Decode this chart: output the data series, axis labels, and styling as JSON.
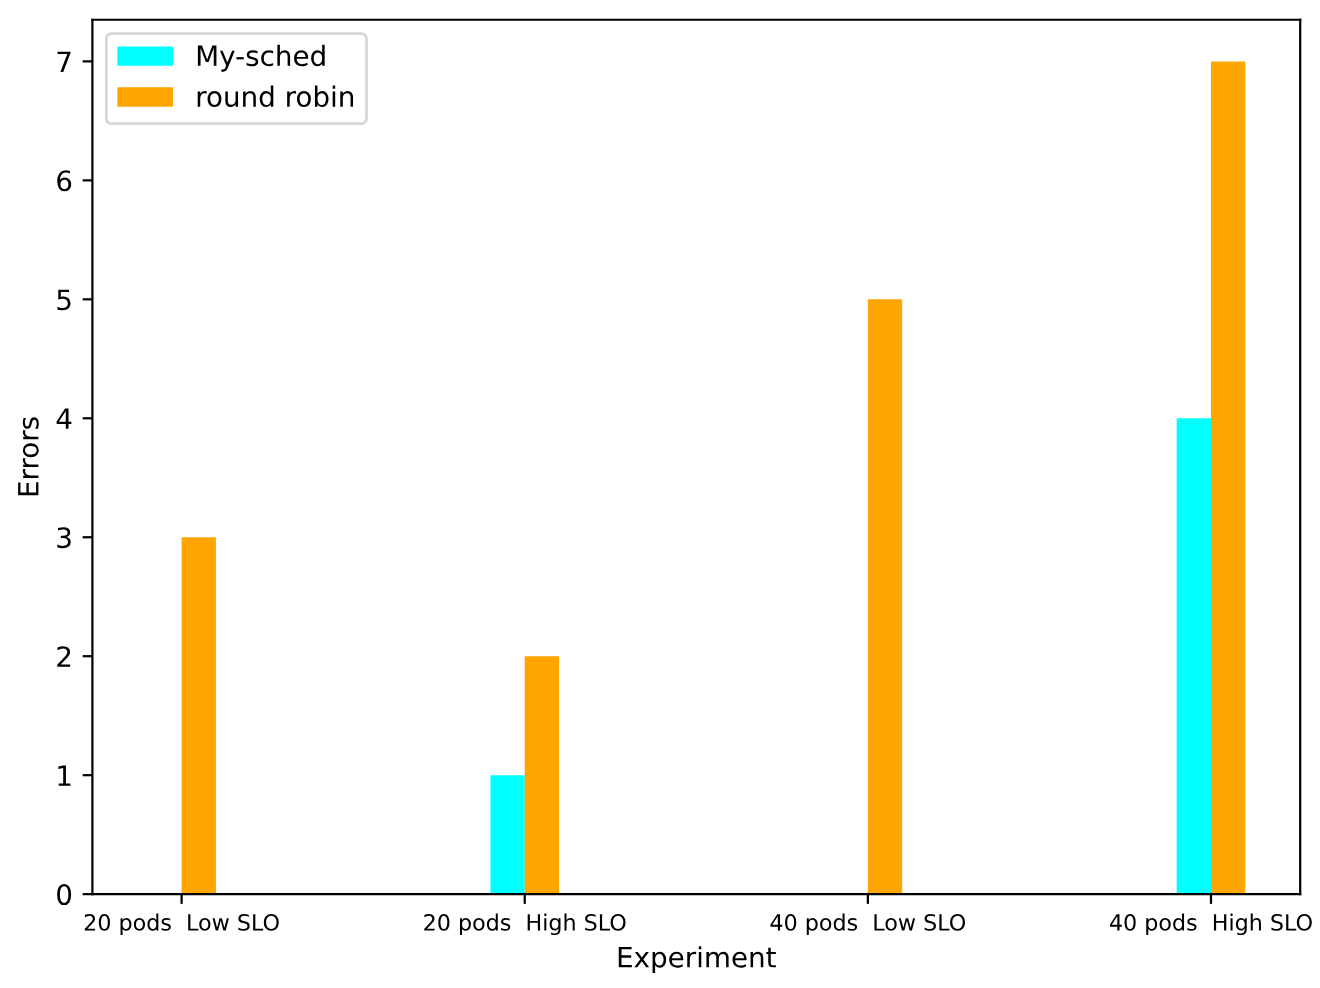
{
  "chart_data": {
    "type": "bar",
    "xlabel": "Experiment",
    "ylabel": "Errors",
    "categories": [
      "20 pods  Low SLO",
      "20 pods  High SLO",
      "40 pods  Low SLO",
      "40 pods  High SLO"
    ],
    "series": [
      {
        "name": "My-sched",
        "color": "#00ffff",
        "values": [
          0,
          1,
          0,
          4
        ]
      },
      {
        "name": "round robin",
        "color": "#ffa500",
        "values": [
          3,
          2,
          5,
          7
        ]
      }
    ],
    "ylim": [
      0,
      7.35
    ],
    "yticks": [
      0,
      1,
      2,
      3,
      4,
      5,
      6,
      7
    ],
    "grid": false,
    "legend": "top left"
  }
}
